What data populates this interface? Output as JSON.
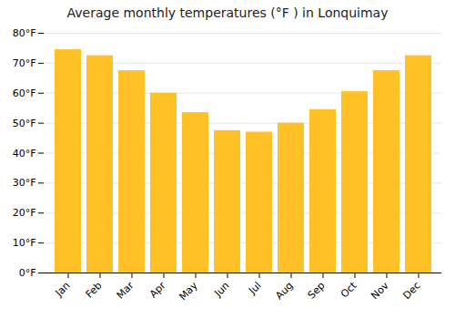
{
  "chart_data": {
    "type": "bar",
    "title": "Average monthly temperatures (°F ) in Lonquimay",
    "categories": [
      "Jan",
      "Feb",
      "Mar",
      "Apr",
      "May",
      "Jun",
      "Jul",
      "Aug",
      "Sep",
      "Oct",
      "Nov",
      "Dec"
    ],
    "values": [
      74.5,
      72.5,
      67.5,
      60.0,
      53.5,
      47.5,
      47.0,
      50.0,
      54.5,
      60.5,
      67.5,
      72.5
    ],
    "color": "#FFC125",
    "ylim": [
      0,
      80
    ],
    "yticks": [
      {
        "value": 0,
        "label": "0°F"
      },
      {
        "value": 10,
        "label": "10°F"
      },
      {
        "value": 20,
        "label": "20°F"
      },
      {
        "value": 30,
        "label": "30°F"
      },
      {
        "value": 40,
        "label": "40°F"
      },
      {
        "value": 50,
        "label": "50°F"
      },
      {
        "value": 60,
        "label": "60°F"
      },
      {
        "value": 70,
        "label": "70°F"
      },
      {
        "value": 80,
        "label": "80°F"
      }
    ],
    "grid": true
  }
}
